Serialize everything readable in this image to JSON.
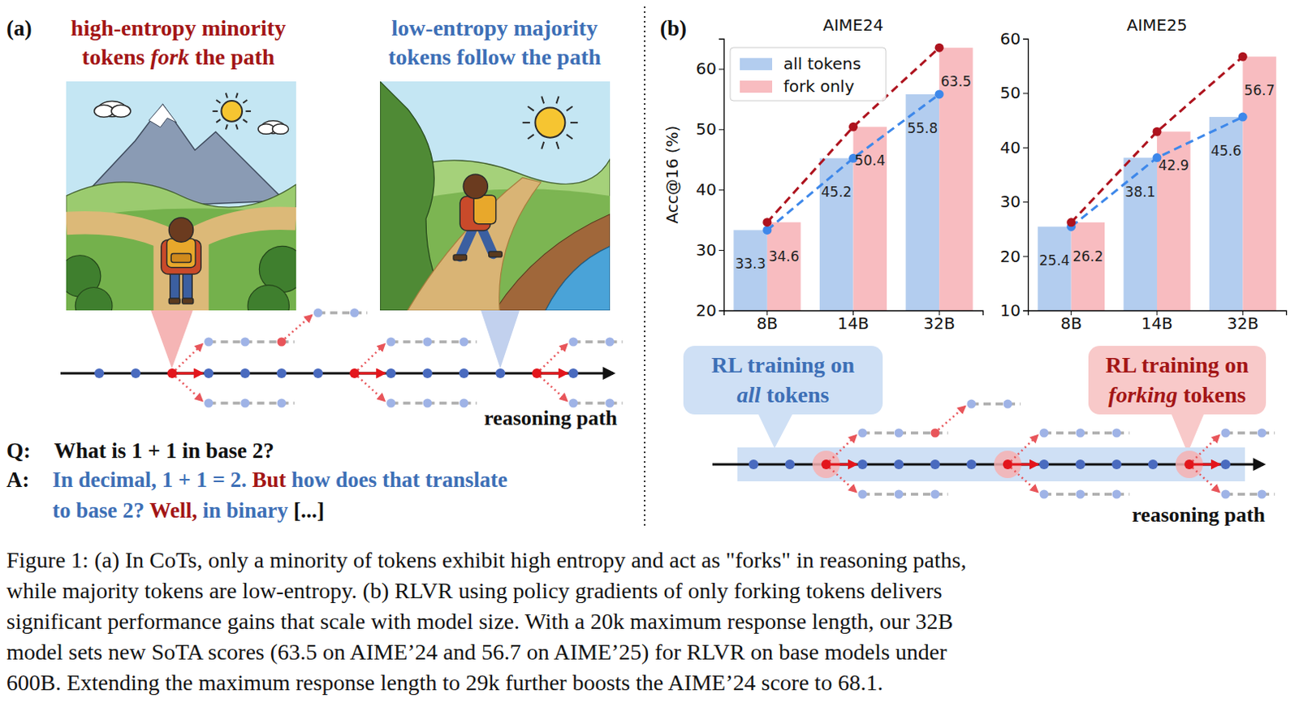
{
  "chart_data": [
    {
      "type": "bar",
      "title": "AIME24",
      "ylabel": "Acc@16 (%)",
      "categories": [
        "8B",
        "14B",
        "32B"
      ],
      "series": [
        {
          "name": "all tokens",
          "color": "#b3cdef",
          "values": [
            33.3,
            45.2,
            55.8
          ],
          "line_style": "dashed"
        },
        {
          "name": "fork only",
          "color": "#f8bcc0",
          "values": [
            34.6,
            50.4,
            63.5
          ],
          "line_style": "dashed"
        }
      ],
      "ylim": [
        20,
        65
      ],
      "yticks": [
        20,
        30,
        40,
        50,
        60
      ],
      "legend": "upper left",
      "data_labels": true
    },
    {
      "type": "bar",
      "title": "AIME25",
      "categories": [
        "8B",
        "14B",
        "32B"
      ],
      "series": [
        {
          "name": "all tokens",
          "color": "#b3cdef",
          "values": [
            25.4,
            38.1,
            45.6
          ],
          "line_style": "dashed"
        },
        {
          "name": "fork only",
          "color": "#f8bcc0",
          "values": [
            26.2,
            42.9,
            56.7
          ],
          "line_style": "dashed"
        }
      ],
      "ylim": [
        10,
        60
      ],
      "yticks": [
        10,
        20,
        30,
        40,
        50,
        60
      ],
      "data_labels": true
    }
  ],
  "figure": {
    "panel_a": {
      "label": "(a)",
      "fork_title": {
        "color": "#a31515",
        "lines": [
          [
            {
              "text": "high-entropy minority"
            }
          ],
          [
            {
              "text": "tokens "
            },
            {
              "text": "fork",
              "italic": true
            },
            {
              "text": " the path"
            }
          ]
        ]
      },
      "follow_title": {
        "color": "#3d6fb6",
        "lines": [
          [
            {
              "text": "low-entropy majority"
            }
          ],
          [
            {
              "text": "tokens follow the path"
            }
          ]
        ]
      },
      "path_label": "reasoning path",
      "question": {
        "prefix": "Q:",
        "text": "What is 1 + 1 in base 2?"
      },
      "answer": {
        "prefix": "A:",
        "lines": [
          [
            {
              "text": "In decimal, 1 + 1 = 2.",
              "color": "#3d6fb6"
            },
            {
              "text": " But",
              "color": "#a31515"
            },
            {
              "text": " how does that translate",
              "color": "#3d6fb6"
            }
          ],
          [
            {
              "text": "to base 2?",
              "color": "#3d6fb6"
            },
            {
              "text": " Well,",
              "color": "#a31515"
            },
            {
              "text": " in binary",
              "color": "#3d6fb6"
            },
            {
              "text": " [...]",
              "color": "#111111"
            }
          ]
        ]
      }
    },
    "panel_b": {
      "label": "(b)",
      "all_box": {
        "color": "#3d6fb6",
        "lines": [
          [
            {
              "text": "RL training on"
            }
          ],
          [
            {
              "text": "all",
              "italic": true
            },
            {
              "text": " tokens"
            }
          ]
        ]
      },
      "fork_box": {
        "color": "#a31515",
        "lines": [
          [
            {
              "text": "RL training on"
            }
          ],
          [
            {
              "text": "forking",
              "italic": true
            },
            {
              "text": " tokens"
            }
          ]
        ]
      },
      "path_label": "reasoning path"
    },
    "caption": [
      "Figure 1: (a) In CoTs, only a minority of tokens exhibit high entropy and act as \"forks\" in reasoning paths,",
      "while majority tokens are low-entropy. (b) RLVR using policy gradients of only forking tokens delivers",
      "significant performance gains that scale with model size. With a 20k maximum response length, our 32B",
      "model sets new SoTA scores (63.5 on AIME’24 and 56.7 on AIME’25) for RLVR on base models under",
      "600B. Extending the maximum response length to 29k further boosts the AIME’24 score to 68.1."
    ]
  }
}
